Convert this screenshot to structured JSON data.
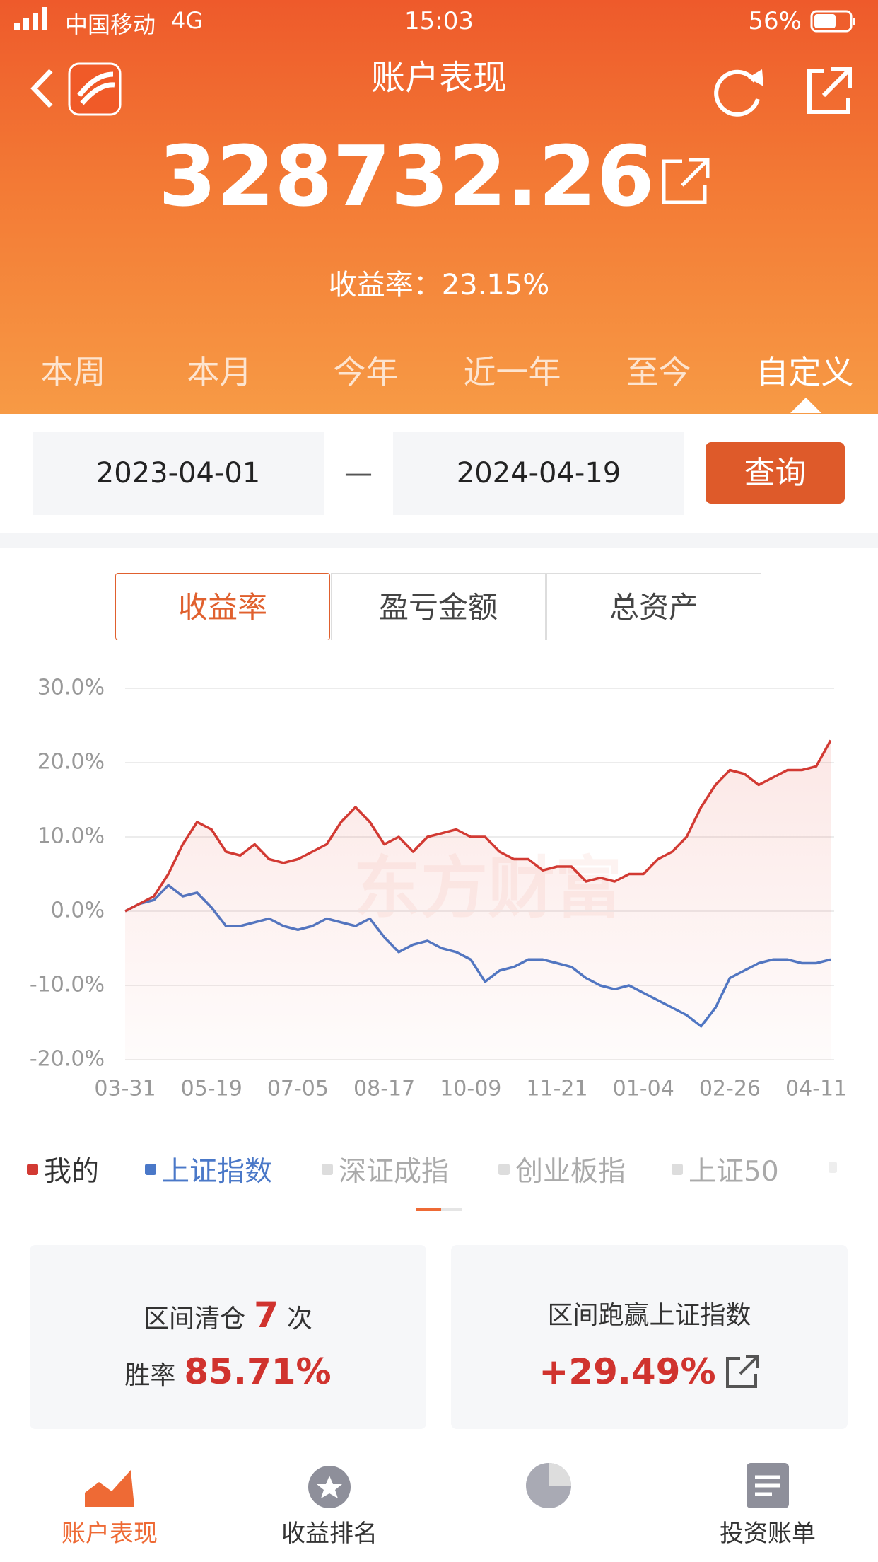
{
  "status_bar": {
    "carrier": "中国移动",
    "network": "4G",
    "time": "15:03",
    "battery": "56%"
  },
  "header": {
    "title": "账户表现",
    "amount": "328732.26",
    "yield_label": "收益率：",
    "yield_value": "23.15%"
  },
  "period_tabs": [
    "本周",
    "本月",
    "今年",
    "近一年",
    "至今",
    "自定义"
  ],
  "date_range": {
    "start": "2023-04-01",
    "separator": "—",
    "end": "2024-04-19",
    "button": "查询"
  },
  "segment_tabs": [
    "收益率",
    "盈亏金额",
    "总资产"
  ],
  "chart_data": {
    "type": "line",
    "watermark": "东方财富",
    "categories": [
      "03-31",
      null,
      null,
      null,
      null,
      null,
      "05-19",
      null,
      null,
      null,
      null,
      null,
      "07-05",
      null,
      null,
      null,
      null,
      null,
      "08-17",
      null,
      null,
      null,
      null,
      null,
      "10-09",
      null,
      null,
      null,
      null,
      null,
      "11-21",
      null,
      null,
      null,
      null,
      null,
      "01-04",
      null,
      null,
      null,
      null,
      null,
      "02-26",
      null,
      null,
      null,
      null,
      null,
      "04-11",
      null
    ],
    "series": [
      {
        "name": "我的",
        "color": "#d23a33",
        "values": [
          0,
          1,
          2,
          5,
          9,
          12,
          11,
          8,
          7.5,
          9,
          7,
          6.5,
          7,
          8,
          9,
          12,
          14,
          12,
          9,
          10,
          8,
          10,
          10.5,
          11,
          10,
          10,
          8,
          7,
          7,
          5.5,
          6,
          6,
          4,
          4.5,
          4,
          5,
          5,
          7,
          8,
          10,
          14,
          17,
          19,
          18.5,
          17,
          18,
          19,
          19,
          19.5,
          23
        ]
      },
      {
        "name": "上证指数",
        "color": "#4a78c8",
        "values": [
          0,
          1,
          1.5,
          3.5,
          2,
          2.5,
          0.5,
          -2,
          -2,
          -1.5,
          -1,
          -2,
          -2.5,
          -2,
          -1,
          -1.5,
          -2,
          -1,
          -3.5,
          -5.5,
          -4.5,
          -4,
          -5,
          -5.5,
          -6.5,
          -9.5,
          -8,
          -7.5,
          -6.5,
          -6.5,
          -7,
          -7.5,
          -9,
          -10,
          -10.5,
          -10,
          -11,
          -12,
          -13,
          -14,
          -15.5,
          -13,
          -9,
          -8,
          -7,
          -6.5,
          -6.5,
          -7,
          -7,
          -6.5
        ]
      }
    ],
    "inactive_legend": [
      "深证成指",
      "创业板指",
      "上证50"
    ],
    "ylim": [
      -20,
      30
    ],
    "yticks": [
      {
        "value": 30,
        "label": "30.0%"
      },
      {
        "value": 20,
        "label": "20.0%"
      },
      {
        "value": 10,
        "label": "10.0%"
      },
      {
        "value": 0,
        "label": "0.0%"
      },
      {
        "value": -10,
        "label": "-10.0%"
      },
      {
        "value": -20,
        "label": "-20.0%"
      }
    ],
    "grid": true
  },
  "stats": {
    "clear_label": "区间清仓",
    "clear_count": "7",
    "clear_unit": "次",
    "win_label": "胜率",
    "win_rate": "85.71%",
    "beat_label": "区间跑赢上证指数",
    "beat_value": "+29.49%"
  },
  "bottom_nav": [
    "账户表现",
    "收益排名",
    "投资账单"
  ]
}
